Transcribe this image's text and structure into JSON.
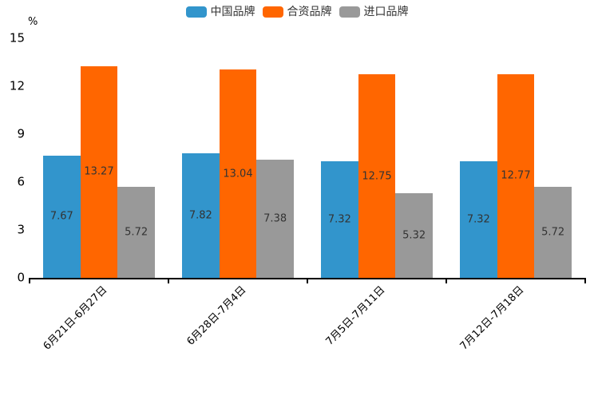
{
  "chart_data": {
    "type": "bar",
    "title": "",
    "ylabel": "%",
    "ylim": [
      0,
      15
    ],
    "y_ticks": [
      15,
      12,
      9,
      6,
      3,
      0
    ],
    "grid": false,
    "legend_position": "top",
    "categories": [
      "6月21日-6月27日",
      "6月28日-7月4日",
      "7月5日-7月11日",
      "7月12日-7月18日"
    ],
    "series": [
      {
        "name": "中国品牌",
        "color": "#3295CC",
        "values": [
          7.67,
          7.82,
          7.32,
          7.32
        ]
      },
      {
        "name": "合资品牌",
        "color": "#FF6600",
        "values": [
          13.27,
          13.04,
          12.75,
          12.77
        ]
      },
      {
        "name": "进口品牌",
        "color": "#999999",
        "values": [
          5.72,
          7.38,
          5.32,
          5.72
        ]
      }
    ],
    "value_label_color": "#333333",
    "axis_color": "#000000"
  }
}
